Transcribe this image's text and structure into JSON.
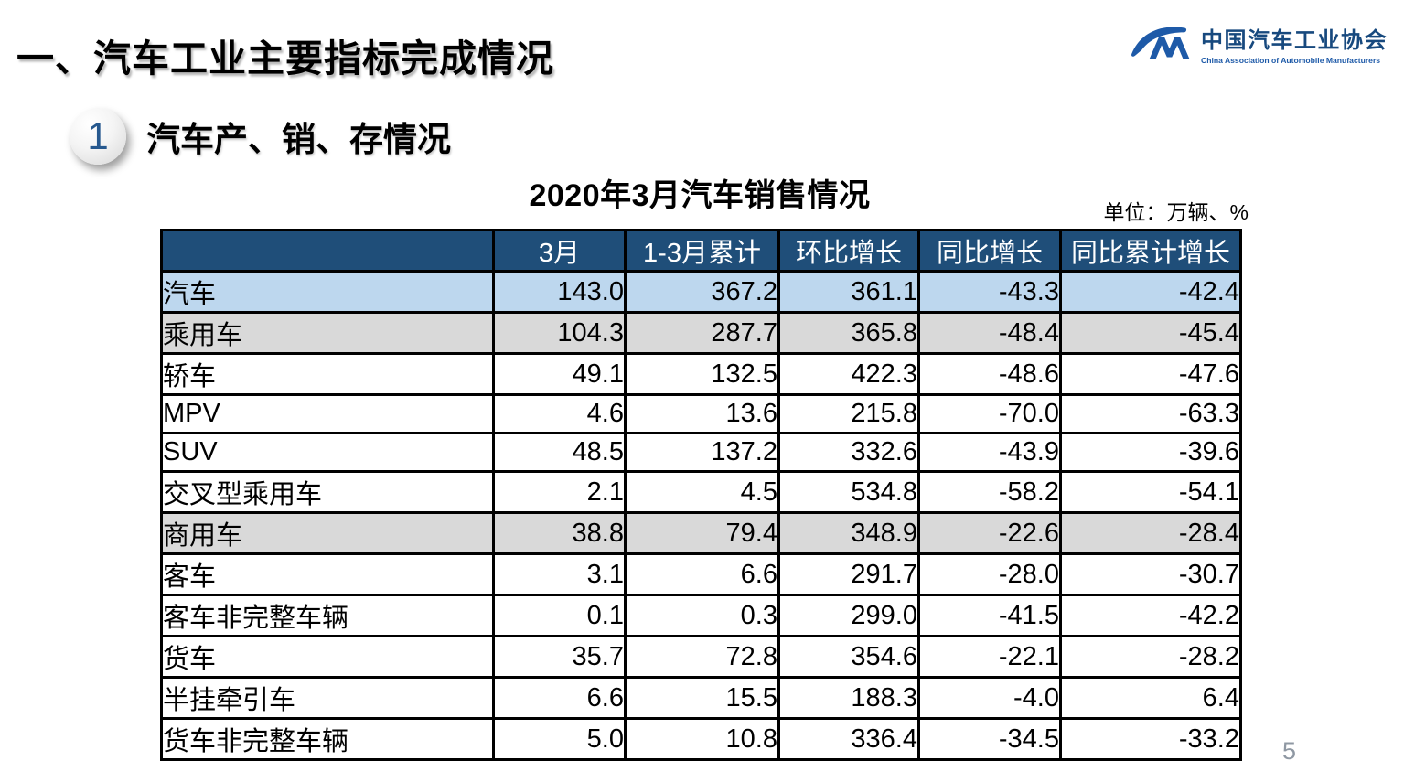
{
  "page": {
    "title": "一、汽车工业主要指标完成情况",
    "page_number": "5"
  },
  "logo": {
    "name_cn": "中国汽车工业协会",
    "name_en": "China Association of Automobile Manufacturers",
    "brand_color": "#1e5aa8"
  },
  "section": {
    "number": "1",
    "title": "汽车产、销、存情况"
  },
  "table": {
    "title": "2020年3月汽车销售情况",
    "unit_note": "单位：万辆、%",
    "colors": {
      "header_bg": "#1f4e79",
      "header_text": "#ffffff",
      "highlight_blue": "#bdd7ee",
      "highlight_gray": "#d9d9d9",
      "border": "#000000"
    },
    "columns": [
      "",
      "3月",
      "1-3月累计",
      "环比增长",
      "同比增长",
      "同比累计增长"
    ],
    "rows": [
      {
        "label": "汽车",
        "indent": 0,
        "style": "blue",
        "values": [
          "143.0",
          "367.2",
          "361.1",
          "-43.3",
          "-42.4"
        ]
      },
      {
        "label": "乘用车",
        "indent": 1,
        "style": "gray",
        "values": [
          "104.3",
          "287.7",
          "365.8",
          "-48.4",
          "-45.4"
        ]
      },
      {
        "label": "轿车",
        "indent": 3,
        "style": "plain",
        "values": [
          "49.1",
          "132.5",
          "422.3",
          "-48.6",
          "-47.6"
        ]
      },
      {
        "label": "MPV",
        "indent": 3,
        "style": "plain",
        "values": [
          "4.6",
          "13.6",
          "215.8",
          "-70.0",
          "-63.3"
        ]
      },
      {
        "label": "SUV",
        "indent": 3,
        "style": "plain",
        "values": [
          "48.5",
          "137.2",
          "332.6",
          "-43.9",
          "-39.6"
        ]
      },
      {
        "label": "交叉型乘用车",
        "indent": 3,
        "style": "plain",
        "values": [
          "2.1",
          "4.5",
          "534.8",
          "-58.2",
          "-54.1"
        ]
      },
      {
        "label": "商用车",
        "indent": 1,
        "style": "gray",
        "values": [
          "38.8",
          "79.4",
          "348.9",
          "-22.6",
          "-28.4"
        ]
      },
      {
        "label": "客车",
        "indent": 2,
        "style": "plain",
        "values": [
          "3.1",
          "6.6",
          "291.7",
          "-28.0",
          "-30.7"
        ]
      },
      {
        "label": "客车非完整车辆",
        "indent": 4,
        "style": "plain",
        "values": [
          "0.1",
          "0.3",
          "299.0",
          "-41.5",
          "-42.2"
        ]
      },
      {
        "label": "货车",
        "indent": 2,
        "style": "plain",
        "values": [
          "35.7",
          "72.8",
          "354.6",
          "-22.1",
          "-28.2"
        ]
      },
      {
        "label": "半挂牵引车",
        "indent": 4,
        "style": "plain",
        "values": [
          "6.6",
          "15.5",
          "188.3",
          "-4.0",
          "6.4"
        ]
      },
      {
        "label": "货车非完整车辆",
        "indent": 4,
        "style": "plain",
        "values": [
          "5.0",
          "10.8",
          "336.4",
          "-34.5",
          "-33.2"
        ]
      }
    ]
  }
}
